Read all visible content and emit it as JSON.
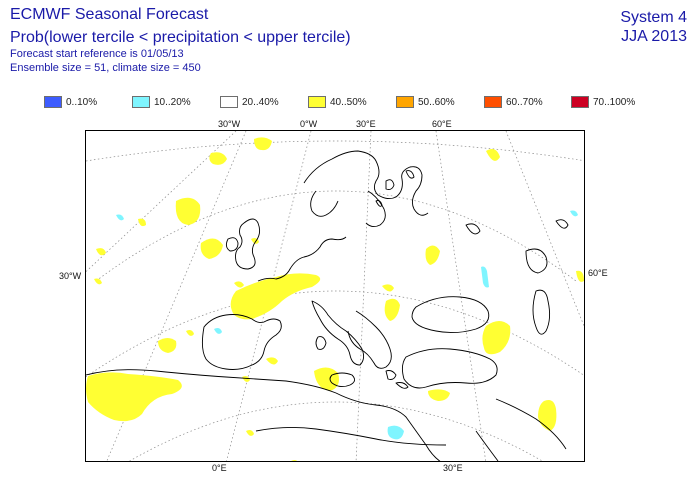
{
  "header": {
    "title": "ECMWF Seasonal Forecast",
    "subtitle": "Prob(lower tercile < precipitation < upper tercile)",
    "start_ref": "Forecast start reference is 01/05/13",
    "ensemble": "Ensemble size = 51, climate size = 450",
    "system": "System 4",
    "season": "JJA 2013"
  },
  "legend": [
    {
      "label": "0..10%",
      "color": "#3d5cff"
    },
    {
      "label": "10..20%",
      "color": "#7ff5ff"
    },
    {
      "label": "20..40%",
      "color": "#ffffff"
    },
    {
      "label": "40..50%",
      "color": "#ffff33"
    },
    {
      "label": "50..60%",
      "color": "#ffa500"
    },
    {
      "label": "60..70%",
      "color": "#ff4f00"
    },
    {
      "label": "70..100%",
      "color": "#cc0022"
    }
  ],
  "axes": {
    "top": [
      "30°W",
      "0°W",
      "30°E",
      "60°E"
    ],
    "left": "30°W",
    "right": "60°E",
    "bottom": [
      "0°E",
      "30°E"
    ]
  }
}
